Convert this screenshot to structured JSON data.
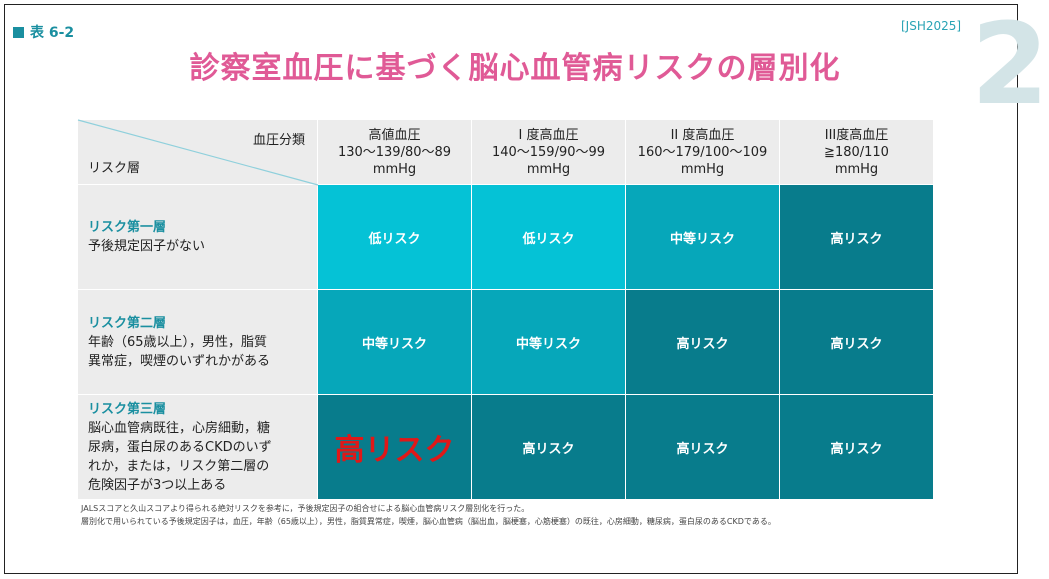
{
  "header": {
    "table_label": "表 6-2",
    "reference": "[JSH2025]",
    "chapter_number": "2",
    "title": "診察室血圧に基づく脳心血管病リスクの層別化"
  },
  "table": {
    "corner": {
      "bp_label": "血圧分類",
      "risk_label": "リスク層"
    },
    "columns": [
      {
        "line1": "高値血圧",
        "line2": "130～139/80～89",
        "line3": "mmHg"
      },
      {
        "line1": "I 度高血圧",
        "line2": "140～159/90～99",
        "line3": "mmHg"
      },
      {
        "line1": "II 度高血圧",
        "line2": "160～179/100～109",
        "line3": "mmHg"
      },
      {
        "line1": "III度高血圧",
        "line2": "≧180/110",
        "line3": "mmHg"
      }
    ],
    "rows": [
      {
        "name": "リスク第一層",
        "desc": [
          "予後規定因子がない"
        ],
        "cells": [
          "低リスク",
          "低リスク",
          "中等リスク",
          "高リスク"
        ]
      },
      {
        "name": "リスク第二層",
        "desc": [
          "年齢（65歳以上），男性，脂質",
          "異常症，喫煙のいずれかがある"
        ],
        "cells": [
          "中等リスク",
          "中等リスク",
          "高リスク",
          "高リスク"
        ]
      },
      {
        "name": "リスク第三層",
        "desc": [
          "脳心血管病既往，心房細動，糖",
          "尿病，蛋白尿のあるCKDのいず",
          "れか，または，リスク第二層の",
          "危険因子が3つ以上ある"
        ],
        "cells": [
          "高リスク",
          "高リスク",
          "高リスク",
          "高リスク"
        ]
      }
    ]
  },
  "notes": [
    "JALSスコアと久山スコアより得られる絶対リスクを参考に，予後規定因子の組合せによる脳心血管病リスク層別化を行った。",
    "層別化で用いられている予後規定因子は，血圧，年齢（65歳以上），男性，脂質異常症，喫煙，脳心血管病（脳出血，脳梗塞，心筋梗塞）の既往，心房細動，糖尿病，蛋白尿のあるCKDである。"
  ],
  "colors": {
    "low": "#05c2d6",
    "moderate": "#06a7ba",
    "high": "#087c8c",
    "title": "#e05a96",
    "highlight_text": "#e01818"
  }
}
